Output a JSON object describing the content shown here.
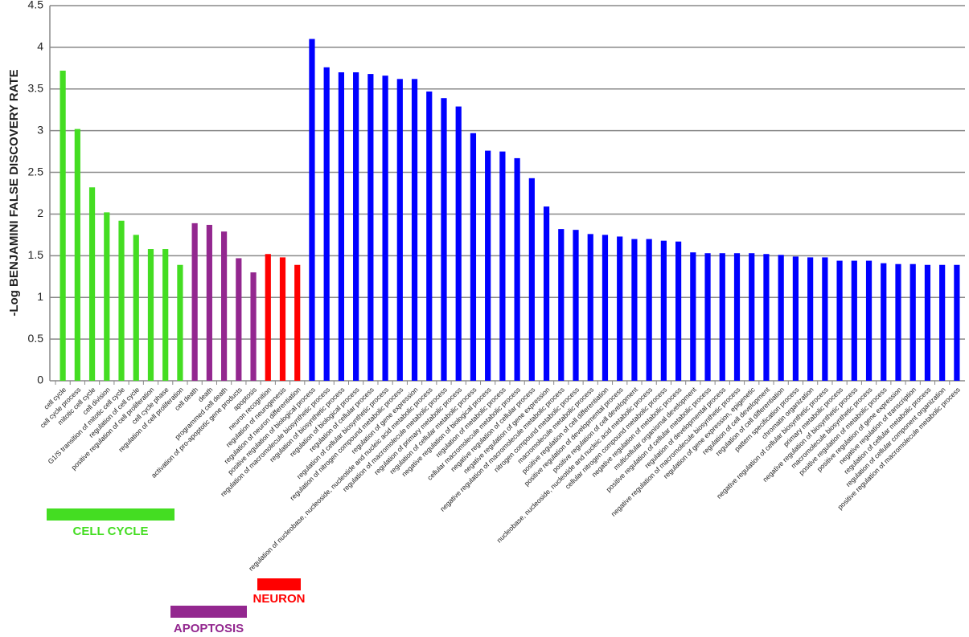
{
  "chart_data": {
    "type": "bar",
    "y_label": "-Log BENJAMINI FALSE DISCOVERY RATE",
    "ylim": [
      0,
      4.5
    ],
    "yticks": [
      0,
      0.5,
      1,
      1.5,
      2,
      2.5,
      3,
      3.5,
      4,
      4.5
    ],
    "grid": true,
    "categories": [
      "cell cycle",
      "cell cycle process",
      "mitotic cell cycle",
      "cell division",
      "G1/S transition of mitotic cell cycle",
      "regulation of cell cycle",
      "positive regulation of cell proliferation",
      "cell cycle phase",
      "regulation of cell proliferation",
      "cell death",
      "death",
      "programmed cell death",
      "activation of pro-apoptotic gene products",
      "apoptosis",
      "neuron recognition",
      "regulation of neurogenesis",
      "regulation of neuron differentiation",
      "positive regulation of biological process",
      "regulation of macromolecule biosynthetic process",
      "regulation of biosynthetic process",
      "regulation of biological process",
      "regulation of cellular process",
      "regulation of cellular biosynthetic process",
      "regulation of nitrogen compound metabolic process",
      "regulation of gene expression",
      "regulation of nucleobase, nucleoside, nucleotide and nucleic acid metabolic process",
      "regulation of macromolecule metabolic process",
      "regulation of primary metabolic process",
      "regulation of cellular metabolic process",
      "negative regulation of biological process",
      "regulation of metabolic process",
      "cellular macromolecule metabolic process",
      "negative regulation of cellular process",
      "negative regulation of gene expression",
      "negative regulation of macromolecule metabolic process",
      "nitrogen compound metabolic process",
      "macromolecule metabolic process",
      "positive regulation of cell differentiation",
      "positive regulation of developmental process",
      "positive regulation of cell development",
      "nucleobase, nucleoside, nucleotide and nucleic acid metabolic process",
      "cellular nitrogen compound metabolic process",
      "negative regulation of metabolic process",
      "multicellular organismal development",
      "positive regulation of cellular metabolic process",
      "regulation of developmental process",
      "negative regulation of macromolecule biosynthetic process",
      "regulation of gene expression, epigenetic",
      "regulation of cell development",
      "regulation of cell differentiation",
      "pattern specification process",
      "chromatin organization",
      "negative regulation of cellular biosynthetic process",
      "primary metabolic process",
      "negative regulation of biosynthetic process",
      "macromolecule biosynthetic process",
      "positive regulation of metabolic process",
      "positive regulation of gene expression",
      "negative regulation of transcription",
      "regulation of cellular metabolic process",
      "regulation of cellular component organization",
      "positive regulation of macromolecule metabolic process"
    ],
    "values": [
      3.72,
      3.02,
      2.32,
      2.02,
      1.92,
      1.75,
      1.58,
      1.58,
      1.39,
      1.89,
      1.87,
      1.79,
      1.47,
      1.3,
      1.52,
      1.48,
      1.39,
      4.1,
      3.76,
      3.7,
      3.7,
      3.68,
      3.66,
      3.62,
      3.62,
      3.47,
      3.39,
      3.29,
      2.97,
      2.76,
      2.75,
      2.67,
      2.43,
      2.09,
      1.82,
      1.81,
      1.76,
      1.75,
      1.73,
      1.7,
      1.7,
      1.68,
      1.67,
      1.54,
      1.53,
      1.53,
      1.53,
      1.53,
      1.52,
      1.51,
      1.49,
      1.48,
      1.48,
      1.44,
      1.44,
      1.44,
      1.41,
      1.4,
      1.4,
      1.39,
      1.39,
      1.39
    ],
    "colors": [
      "#44dd22",
      "#44dd22",
      "#44dd22",
      "#44dd22",
      "#44dd22",
      "#44dd22",
      "#44dd22",
      "#44dd22",
      "#44dd22",
      "#93278f",
      "#93278f",
      "#93278f",
      "#93278f",
      "#93278f",
      "#ff0000",
      "#ff0000",
      "#ff0000",
      "#0000ff",
      "#0000ff",
      "#0000ff",
      "#0000ff",
      "#0000ff",
      "#0000ff",
      "#0000ff",
      "#0000ff",
      "#0000ff",
      "#0000ff",
      "#0000ff",
      "#0000ff",
      "#0000ff",
      "#0000ff",
      "#0000ff",
      "#0000ff",
      "#0000ff",
      "#0000ff",
      "#0000ff",
      "#0000ff",
      "#0000ff",
      "#0000ff",
      "#0000ff",
      "#0000ff",
      "#0000ff",
      "#0000ff",
      "#0000ff",
      "#0000ff",
      "#0000ff",
      "#0000ff",
      "#0000ff",
      "#0000ff",
      "#0000ff",
      "#0000ff",
      "#0000ff",
      "#0000ff",
      "#0000ff",
      "#0000ff",
      "#0000ff",
      "#0000ff",
      "#0000ff",
      "#0000ff",
      "#0000ff",
      "#0000ff",
      "#0000ff"
    ],
    "groups": [
      {
        "label": "CELL CYCLE",
        "color": "#44dd22"
      },
      {
        "label": "APOPTOSIS",
        "color": "#93278f"
      },
      {
        "label": "NEURON",
        "color": "#ff0000"
      }
    ]
  }
}
